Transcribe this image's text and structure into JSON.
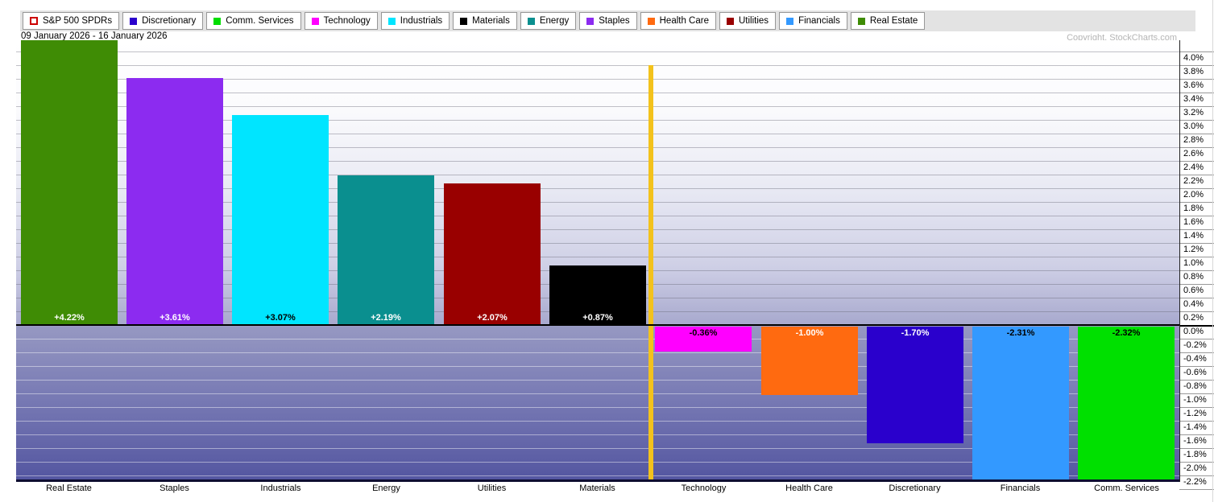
{
  "header": {
    "date_range": "09 January 2026 - 16 January 2026",
    "copyright": "Copyright, StockCharts.com"
  },
  "legend": {
    "items": [
      {
        "label": "S&P 500 SPDRs",
        "swatch": "open",
        "color": "#cc0000"
      },
      {
        "label": "Discretionary",
        "swatch": "filled",
        "color": "#2a00cc"
      },
      {
        "label": "Comm. Services",
        "swatch": "filled",
        "color": "#00dd00"
      },
      {
        "label": "Technology",
        "swatch": "filled",
        "color": "#ff00ff"
      },
      {
        "label": "Industrials",
        "swatch": "filled",
        "color": "#00e5ff"
      },
      {
        "label": "Materials",
        "swatch": "filled",
        "color": "#000000"
      },
      {
        "label": "Energy",
        "swatch": "filled",
        "color": "#0a8f8f"
      },
      {
        "label": "Staples",
        "swatch": "filled",
        "color": "#8c2bf0"
      },
      {
        "label": "Health Care",
        "swatch": "filled",
        "color": "#ff6a10"
      },
      {
        "label": "Utilities",
        "swatch": "filled",
        "color": "#990000"
      },
      {
        "label": "Financials",
        "swatch": "filled",
        "color": "#3399ff"
      },
      {
        "label": "Real Estate",
        "swatch": "filled",
        "color": "#3f8c05"
      }
    ]
  },
  "chart_data": {
    "type": "bar",
    "categories": [
      "Real Estate",
      "Staples",
      "Industrials",
      "Energy",
      "Utilities",
      "Materials",
      "Technology",
      "Health Care",
      "Discretionary",
      "Financials",
      "Comm. Services"
    ],
    "values": [
      4.22,
      3.61,
      3.07,
      2.19,
      2.07,
      0.87,
      -0.36,
      -1.0,
      -1.7,
      -2.31,
      -2.32
    ],
    "value_labels": [
      "+4.22%",
      "+3.61%",
      "+3.07%",
      "+2.19%",
      "+2.07%",
      "+0.87%",
      "-0.36%",
      "-1.00%",
      "-1.70%",
      "-2.31%",
      "-2.32%"
    ],
    "bar_colors": [
      "#3f8c05",
      "#8c2bf0",
      "#00e5ff",
      "#0a8f8f",
      "#990000",
      "#000000",
      "#ff00ff",
      "#ff6a10",
      "#2a00cc",
      "#3399ff",
      "#00e000"
    ],
    "value_label_colors": [
      "#ffffff",
      "#ffffff",
      "#000000",
      "#ffffff",
      "#ffffff",
      "#ffffff",
      "#000000",
      "#ffffff",
      "#ffffff",
      "#000000",
      "#000000"
    ],
    "xlabel": "",
    "ylabel": "",
    "y_axis": {
      "position": "right",
      "grid": true,
      "ylim": [
        -2.3,
        4.16
      ],
      "tick_labels": [
        "4.0%",
        "3.8%",
        "3.6%",
        "3.4%",
        "3.2%",
        "3.0%",
        "2.8%",
        "2.6%",
        "2.4%",
        "2.2%",
        "2.0%",
        "1.8%",
        "1.6%",
        "1.4%",
        "1.2%",
        "1.0%",
        "0.8%",
        "0.6%",
        "0.4%",
        "0.2%",
        "0.0%",
        "-0.2%",
        "-0.4%",
        "-0.6%",
        "-0.8%",
        "-1.0%",
        "-1.2%",
        "-1.4%",
        "-1.6%",
        "-1.8%",
        "-2.0%",
        "-2.2%"
      ]
    },
    "baseline_color": "#000000",
    "divider_line": {
      "color": "#f3c21c",
      "between": [
        "Materials",
        "Technology"
      ]
    },
    "background_gradient": [
      "#ffffff",
      "#5355a0"
    ],
    "grid_color_positive": "rgba(100,100,115,0.4)",
    "grid_color_negative": "rgba(255,255,255,0.45)"
  }
}
